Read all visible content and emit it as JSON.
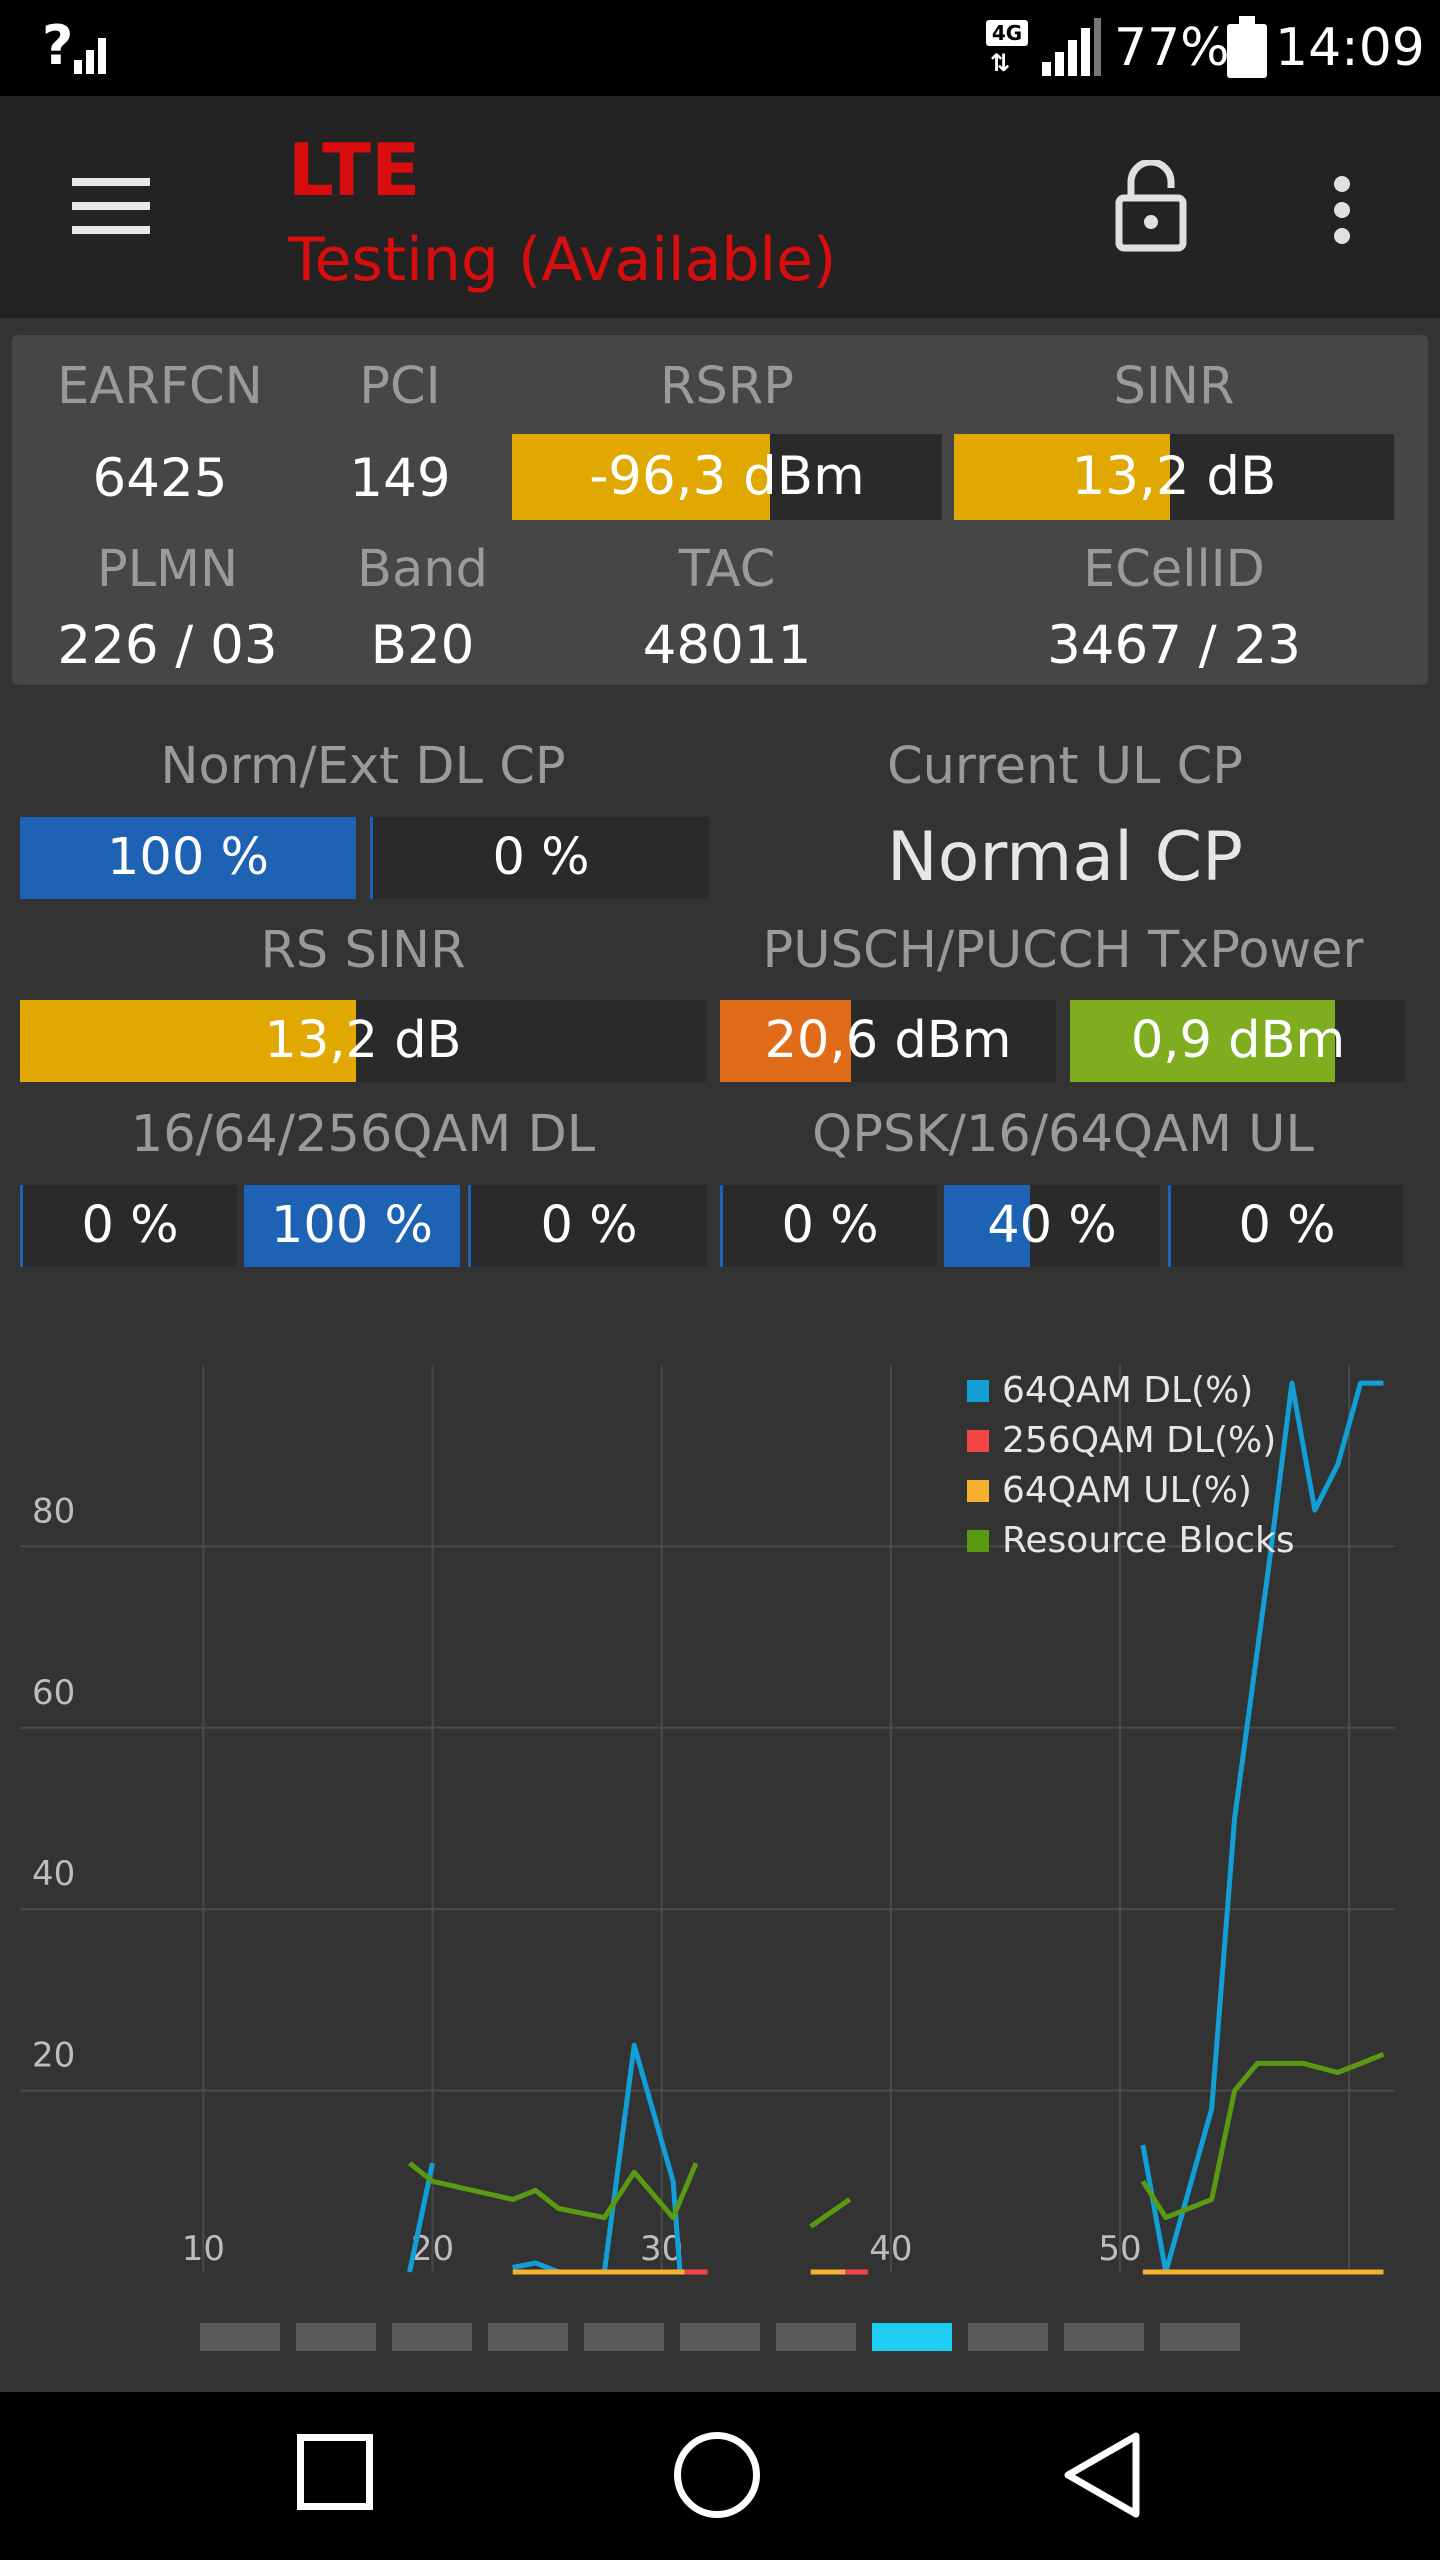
{
  "status_bar": {
    "signal_text": "?",
    "network": "4G",
    "battery": "77%",
    "time": "14:09"
  },
  "app_bar": {
    "menu_icon": "hamburger-menu-icon",
    "title": "LTE",
    "subtitle": "Testing (Available)",
    "lock_icon": "unlock-icon",
    "overflow_icon": "more-vert-icon"
  },
  "cell_info": {
    "earfcn_label": "EARFCN",
    "earfcn": "6425",
    "pci_label": "PCI",
    "pci": "149",
    "rsrp_label": "RSRP",
    "rsrp": "-96,3 dBm",
    "rsrp_fill": 0.6,
    "sinr_label": "SINR",
    "sinr": "13,2 dB",
    "sinr_fill": 0.49,
    "plmn_label": "PLMN",
    "plmn": "226 / 03",
    "band_label": "Band",
    "band": "B20",
    "tac_label": "TAC",
    "tac": "48011",
    "ecellid_label": "ECellID",
    "ecellid": "3467 / 23"
  },
  "cp": {
    "dl_label": "Norm/Ext DL CP",
    "dl_normal": "100 %",
    "dl_normal_fill": 1.0,
    "dl_ext": "0 %",
    "dl_ext_fill": 0.0,
    "ul_label": "Current UL CP",
    "ul_value": "Normal CP"
  },
  "rs_sinr": {
    "label": "RS SINR",
    "value": "13,2 dB",
    "fill": 0.49
  },
  "txpower": {
    "label": "PUSCH/PUCCH TxPower",
    "pusch": "20,6 dBm",
    "pusch_fill": 0.39,
    "pucch": "0,9 dBm",
    "pucch_fill": 0.79
  },
  "qam_dl": {
    "label": "16/64/256QAM DL",
    "items": [
      {
        "value": "0 %",
        "fill": 0.0
      },
      {
        "value": "100 %",
        "fill": 1.0
      },
      {
        "value": "0 %",
        "fill": 0.0
      }
    ]
  },
  "qam_ul": {
    "label": "QPSK/16/64QAM UL",
    "items": [
      {
        "value": "0 %",
        "fill": 0.0
      },
      {
        "value": "40 %",
        "fill": 0.4
      },
      {
        "value": "0 %",
        "fill": 0.0
      }
    ]
  },
  "colors": {
    "yellow": "#e0a800",
    "blue": "#1e62b4",
    "orange": "#e06c1a",
    "green": "#7fad20",
    "accent_red": "#d90d0d",
    "line_blue": "#119fd6",
    "line_red": "#f44444",
    "line_orange": "#f7b131",
    "line_green": "#5a9a12",
    "page_active": "#1ecdf0"
  },
  "chart_data": {
    "type": "line",
    "x_ticks": [
      "10",
      "20",
      "30",
      "40",
      "50"
    ],
    "y_ticks": [
      "20",
      "40",
      "60",
      "80"
    ],
    "xlim": [
      2,
      62
    ],
    "ylim": [
      0,
      100
    ],
    "grid": true,
    "legend_position": "top-right",
    "series": [
      {
        "name": "64QAM DL(%)",
        "color": "#119fd6",
        "segments": [
          [
            [
              19,
              0
            ],
            [
              20,
              12
            ]
          ],
          [
            [
              23.5,
              0.5
            ],
            [
              24.5,
              1
            ],
            [
              25.5,
              0
            ],
            [
              27.5,
              0
            ],
            [
              28.8,
              25
            ],
            [
              30.5,
              10
            ],
            [
              30.8,
              0
            ]
          ],
          [
            [
              51,
              14
            ],
            [
              52,
              0
            ],
            [
              54,
              18
            ],
            [
              55,
              50
            ],
            [
              56.5,
              78
            ],
            [
              57.5,
              98
            ],
            [
              58.5,
              84
            ],
            [
              59.5,
              89
            ],
            [
              60.5,
              98
            ],
            [
              61.5,
              98
            ]
          ]
        ]
      },
      {
        "name": "256QAM DL(%)",
        "color": "#f44444",
        "segments": [
          [
            [
              31,
              0
            ],
            [
              32,
              0
            ]
          ],
          [
            [
              38,
              0
            ],
            [
              39,
              0
            ]
          ]
        ]
      },
      {
        "name": "64QAM UL(%)",
        "color": "#f7b131",
        "segments": [
          [
            [
              23.5,
              0
            ],
            [
              27,
              0
            ],
            [
              31,
              0
            ]
          ],
          [
            [
              36.5,
              0
            ],
            [
              38,
              0
            ]
          ],
          [
            [
              51,
              0
            ],
            [
              61.5,
              0
            ]
          ]
        ]
      },
      {
        "name": "Resource Blocks",
        "color": "#5a9a12",
        "segments": [
          [
            [
              19,
              12
            ],
            [
              20,
              10
            ],
            [
              23.5,
              8
            ],
            [
              24.5,
              9
            ],
            [
              25.5,
              7
            ],
            [
              27.5,
              6
            ],
            [
              28.8,
              11
            ],
            [
              30.5,
              6
            ],
            [
              31.5,
              12
            ]
          ],
          [
            [
              36.5,
              5
            ],
            [
              38.2,
              8
            ]
          ],
          [
            [
              51,
              10
            ],
            [
              52,
              6
            ],
            [
              54,
              8
            ],
            [
              55,
              20
            ],
            [
              56,
              23
            ],
            [
              58,
              23
            ],
            [
              59.5,
              22
            ],
            [
              60.5,
              23
            ],
            [
              61.5,
              24
            ]
          ]
        ]
      }
    ]
  },
  "pager": {
    "count": 11,
    "active": 7
  },
  "nav_bar": {
    "recents_icon": "recents-square-icon",
    "home_icon": "home-circle-icon",
    "back_icon": "back-triangle-icon"
  }
}
